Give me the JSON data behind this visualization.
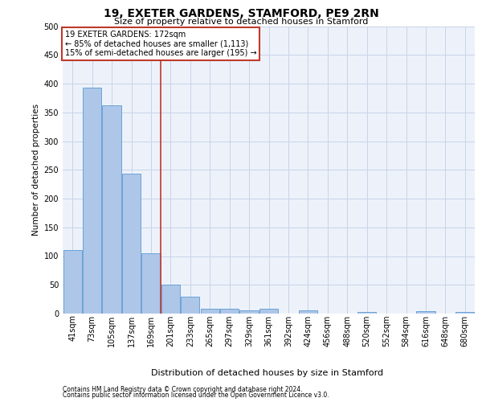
{
  "title": "19, EXETER GARDENS, STAMFORD, PE9 2RN",
  "subtitle": "Size of property relative to detached houses in Stamford",
  "xlabel": "Distribution of detached houses by size in Stamford",
  "ylabel": "Number of detached properties",
  "categories": [
    "41sqm",
    "73sqm",
    "105sqm",
    "137sqm",
    "169sqm",
    "201sqm",
    "233sqm",
    "265sqm",
    "297sqm",
    "329sqm",
    "361sqm",
    "392sqm",
    "424sqm",
    "456sqm",
    "488sqm",
    "520sqm",
    "552sqm",
    "584sqm",
    "616sqm",
    "648sqm",
    "680sqm"
  ],
  "values": [
    110,
    393,
    362,
    243,
    105,
    50,
    29,
    9,
    8,
    5,
    8,
    0,
    5,
    0,
    0,
    3,
    0,
    0,
    4,
    0,
    3
  ],
  "bar_color": "#aec6e8",
  "bar_edge_color": "#5b9bd5",
  "grid_color": "#c8d4e8",
  "background_color": "#edf2fa",
  "vline_color": "#c0392b",
  "annotation_line1": "19 EXETER GARDENS: 172sqm",
  "annotation_line2": "← 85% of detached houses are smaller (1,113)",
  "annotation_line3": "15% of semi-detached houses are larger (195) →",
  "annotation_box_edge_color": "#c0392b",
  "footer_line1": "Contains HM Land Registry data © Crown copyright and database right 2024.",
  "footer_line2": "Contains public sector information licensed under the Open Government Licence v3.0.",
  "ylim": [
    0,
    500
  ],
  "yticks": [
    0,
    50,
    100,
    150,
    200,
    250,
    300,
    350,
    400,
    450,
    500
  ],
  "vline_xindex": 4.5,
  "title_fontsize": 10,
  "subtitle_fontsize": 8,
  "ylabel_fontsize": 7.5,
  "xlabel_fontsize": 8,
  "tick_fontsize": 7,
  "annot_fontsize": 7,
  "footer_fontsize": 5.5
}
